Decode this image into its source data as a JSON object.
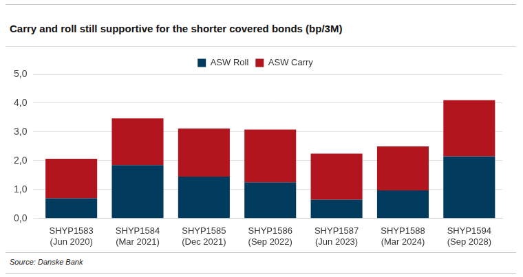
{
  "chart_data": {
    "type": "bar",
    "title": "Carry and roll still supportive for the shorter covered bonds (bp/3M)",
    "source": "Source: Danske Bank",
    "categories": [
      [
        "SHYP1583",
        "(Jun 2020)"
      ],
      [
        "SHYP1584",
        "(Mar 2021)"
      ],
      [
        "SHYP1585",
        "(Dec 2021)"
      ],
      [
        "SHYP1586",
        "(Sep 2022)"
      ],
      [
        "SHYP1587",
        "(Jun 2023)"
      ],
      [
        "SHYP1588",
        "(Mar 2024)"
      ],
      [
        "SHYP1594",
        "(Sep 2028)"
      ]
    ],
    "series": [
      {
        "name": "ASW Roll",
        "color": "#003a5d",
        "values": [
          0.7,
          1.85,
          1.45,
          1.25,
          0.65,
          0.97,
          2.15
        ]
      },
      {
        "name": "ASW Carry",
        "color": "#b3151f",
        "values": [
          1.37,
          1.62,
          1.67,
          1.83,
          1.6,
          1.53,
          1.95
        ]
      }
    ],
    "stacked": true,
    "ylim": [
      0,
      5
    ],
    "yticks": [
      {
        "value": 0,
        "label": "0,0"
      },
      {
        "value": 1,
        "label": "1,0"
      },
      {
        "value": 2,
        "label": "2,0"
      },
      {
        "value": 3,
        "label": "3,0"
      },
      {
        "value": 4,
        "label": "4,0"
      },
      {
        "value": 5,
        "label": "5,0"
      }
    ],
    "grid": true,
    "legend": "top"
  }
}
